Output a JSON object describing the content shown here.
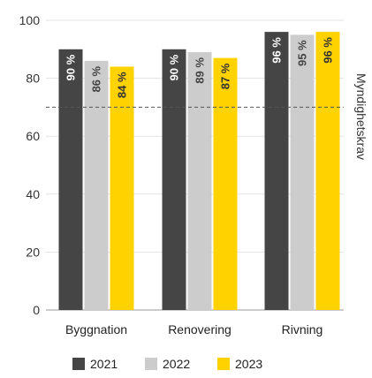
{
  "chart_data": {
    "type": "bar",
    "categories": [
      "Byggnation",
      "Renovering",
      "Rivning"
    ],
    "series": [
      {
        "name": "2021",
        "values": [
          90,
          90,
          96
        ],
        "labels": [
          "90 %",
          "90 %",
          "96 %"
        ],
        "color": "#454545",
        "label_color": "#ffffff"
      },
      {
        "name": "2022",
        "values": [
          86,
          89,
          95
        ],
        "labels": [
          "86 %",
          "89 %",
          "95 %"
        ],
        "color": "#cccccc",
        "label_color": "#444444"
      },
      {
        "name": "2023",
        "values": [
          84,
          87,
          96
        ],
        "labels": [
          "84 %",
          "87 %",
          "96 %"
        ],
        "color": "#ffd200",
        "label_color": "#333333"
      }
    ],
    "ylim": [
      0,
      100
    ],
    "yticks": [
      0,
      20,
      40,
      60,
      80,
      100
    ],
    "grid": true,
    "reference_line": {
      "value": 70,
      "label": "Myndighetskrav",
      "style": "dashed"
    },
    "legend_placement": "bottom-center"
  }
}
